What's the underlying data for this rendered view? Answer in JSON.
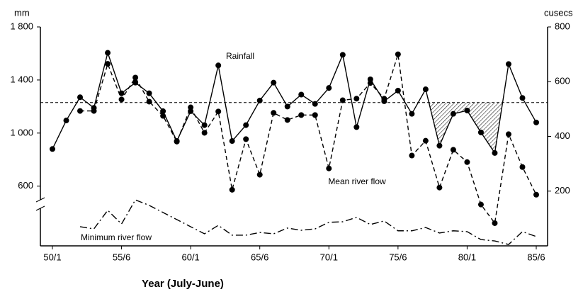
{
  "chart_data": {
    "type": "line",
    "x_label": "Year (July-June)",
    "y_label": "mm",
    "y2_label": "cusecs",
    "categories": [
      "50/1",
      null,
      null,
      null,
      null,
      "55/6",
      null,
      null,
      null,
      null,
      "60/1",
      null,
      null,
      null,
      null,
      "65/6",
      null,
      null,
      null,
      null,
      "70/1",
      null,
      null,
      null,
      null,
      "75/6",
      null,
      null,
      null,
      null,
      "80/1",
      null,
      null,
      null,
      null,
      "85/6"
    ],
    "ylim": [
      150,
      1800
    ],
    "yticks": [
      600,
      {
        "value": 1000,
        "label": "1 000"
      },
      {
        "value": 1400,
        "label": "1 400"
      },
      {
        "value": 1800,
        "label": "1 800"
      }
    ],
    "y2lim": [
      0,
      800
    ],
    "y2ticks": [
      200,
      400,
      600,
      800
    ],
    "reference_line": 1230,
    "series": [
      {
        "name": "Rainfall",
        "color": "#000000",
        "style": "solid",
        "markers": true,
        "values": [
          880,
          1095,
          1270,
          1190,
          1605,
          1300,
          1380,
          1300,
          1165,
          940,
          1165,
          1060,
          1510,
          940,
          1060,
          1245,
          1380,
          1200,
          1290,
          1220,
          1340,
          1590,
          1045,
          1405,
          1240,
          1320,
          1145,
          1330,
          905,
          1145,
          1170,
          1005,
          850,
          1520,
          1265,
          1080
        ]
      },
      {
        "name": "Mean river flow",
        "color": "#000000",
        "style": "dashed",
        "markers": true,
        "axis": "y2",
        "values": [
          null,
          null,
          493,
          493,
          665,
          535,
          615,
          527,
          475,
          381,
          506,
          413,
          491,
          205,
          390,
          260,
          486,
          460,
          478,
          478,
          283,
          532,
          538,
          595,
          538,
          700,
          330,
          384,
          213,
          351,
          306,
          151,
          83,
          408,
          288,
          187
        ]
      },
      {
        "name": "Minimum river flow",
        "color": "#000000",
        "style": "dashdot",
        "markers": false,
        "axis": "y2",
        "values": [
          null,
          null,
          70,
          62,
          130,
          80,
          168,
          148,
          122,
          96,
          70,
          44,
          75,
          39,
          39,
          49,
          44,
          65,
          57,
          62,
          86,
          88,
          104,
          78,
          91,
          55,
          55,
          67,
          47,
          55,
          52,
          23,
          18,
          5,
          52,
          34
        ]
      }
    ]
  }
}
